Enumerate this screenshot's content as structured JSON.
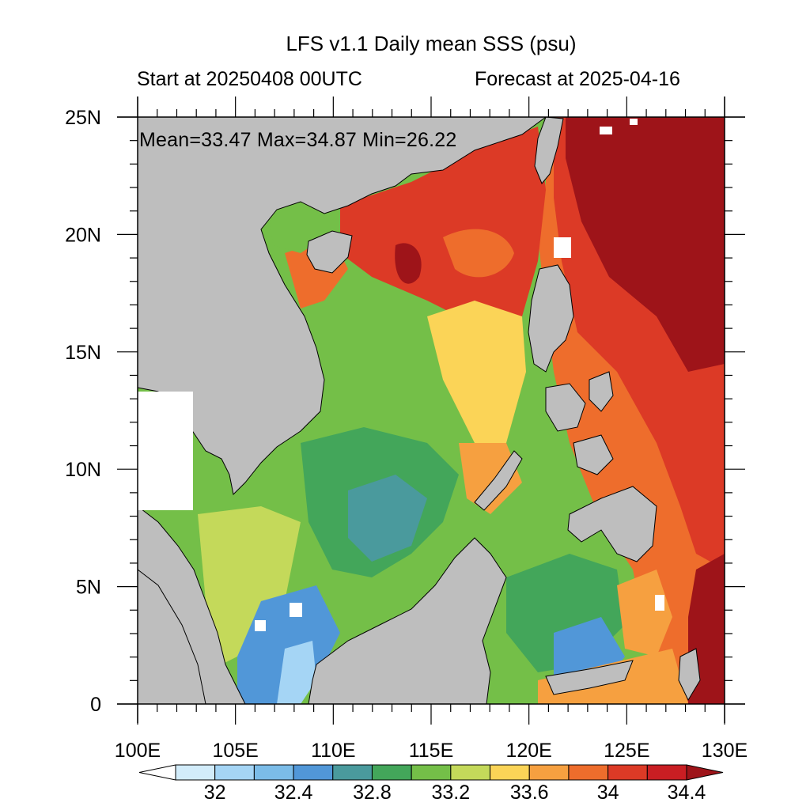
{
  "header": {
    "title": "LFS v1.1 Daily mean SSS (psu)",
    "start": "Start at 20250408 00UTC",
    "forecast": "Forecast at 2025-04-16"
  },
  "stats": {
    "text": "Mean=33.47  Max=34.87  Min=26.22",
    "mean": 33.47,
    "max": 34.87,
    "min": 26.22
  },
  "map": {
    "lon_range": [
      100,
      130
    ],
    "lat_range": [
      0,
      25
    ],
    "land_color": "#bebebe",
    "x_labels": [
      "100E",
      "105E",
      "110E",
      "115E",
      "120E",
      "125E",
      "130E"
    ],
    "y_labels": [
      "25N",
      "20N",
      "15N",
      "10N",
      "5N",
      "0"
    ]
  },
  "colorbar": {
    "labels": [
      "32",
      "32.4",
      "32.8",
      "33.2",
      "33.6",
      "34",
      "34.4"
    ],
    "colors": [
      "#ffffff",
      "#d2ecfa",
      "#a5d5f5",
      "#7bbce8",
      "#5197d8",
      "#4a9a9d",
      "#43a65a",
      "#74bf48",
      "#c4d95a",
      "#fbd457",
      "#f6a040",
      "#ee6d2c",
      "#dc3a26",
      "#c91e23",
      "#9e1419"
    ]
  }
}
